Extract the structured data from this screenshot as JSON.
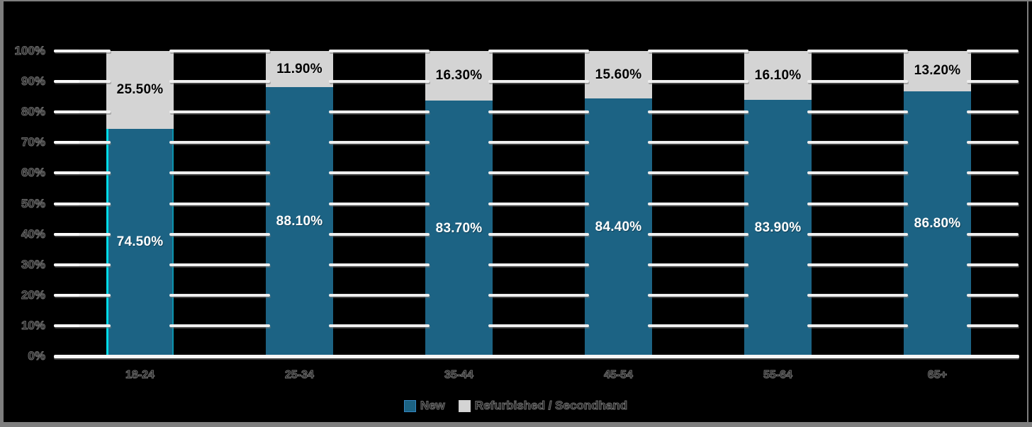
{
  "chart_data": {
    "type": "bar",
    "variant": "stacked-column-100",
    "title": "",
    "categories": [
      "18-24",
      "25-34",
      "35-44",
      "45-54",
      "55-64",
      "65+"
    ],
    "series": [
      {
        "name": "New",
        "color": "#1C6384",
        "label_color": "#FFFFFF",
        "values": [
          74.5,
          88.1,
          83.7,
          84.4,
          83.9,
          86.8
        ],
        "labels": [
          "74.50%",
          "88.10%",
          "83.70%",
          "84.40%",
          "83.90%",
          "86.80%"
        ]
      },
      {
        "name": "Refurbished / Secondhand",
        "color": "#D4D4D4",
        "label_color": "#000000",
        "values": [
          25.5,
          11.9,
          16.3,
          15.6,
          16.1,
          13.2
        ],
        "labels": [
          "25.50%",
          "11.90%",
          "16.30%",
          "15.60%",
          "16.10%",
          "13.20%"
        ]
      }
    ],
    "y_axis": {
      "ticks": [
        "100%",
        "90%",
        "80%",
        "70%",
        "60%",
        "50%",
        "40%",
        "30%",
        "20%",
        "10%",
        "0%"
      ],
      "min": 0,
      "max": 100
    },
    "grid": true,
    "legend_position": "bottom",
    "highlight": {
      "category_index": 0,
      "series_index": 0,
      "edge_color": "#00DCE8"
    }
  },
  "colors": {
    "background": "#000000",
    "frame": "#7E7E7E",
    "gridline": "#EFEFEF",
    "baseline": "#F7F7F7",
    "axis_text_edge": "#6F6F6F"
  }
}
